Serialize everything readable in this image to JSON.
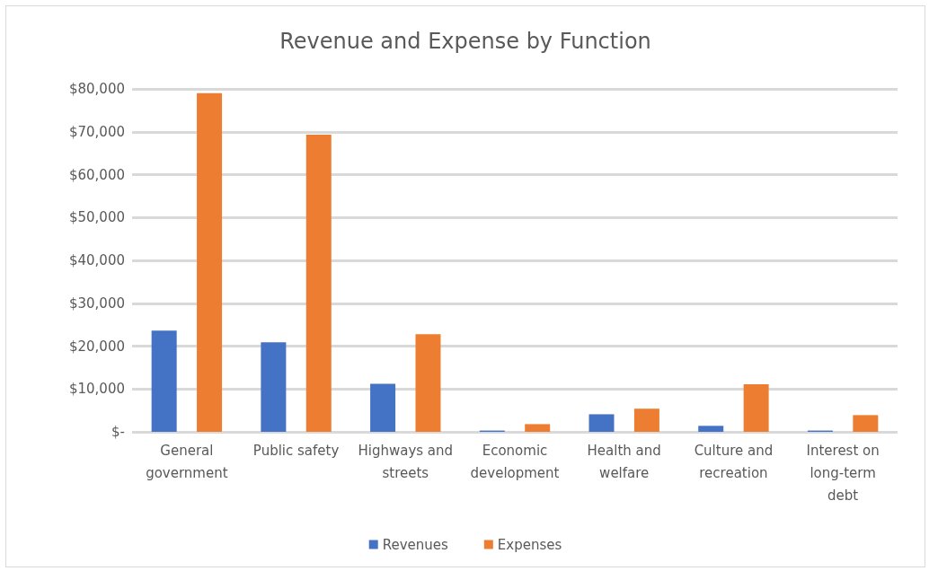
{
  "chart_data": {
    "type": "bar",
    "title": "Revenue and Expense by Function",
    "categories": [
      "General government",
      "Public safety",
      "Highways and streets",
      "Economic development",
      "Health and welfare",
      "Culture and recreation",
      "Interest on long-term debt"
    ],
    "series": [
      {
        "name": "Revenues",
        "color": "#4472c4",
        "values": [
          23600,
          20900,
          11200,
          300,
          4100,
          1400,
          300
        ]
      },
      {
        "name": "Expenses",
        "color": "#ed7d31",
        "values": [
          79000,
          69300,
          22800,
          1800,
          5400,
          11100,
          3900
        ]
      }
    ],
    "ylim": [
      0,
      80000
    ],
    "yticks": [
      {
        "value": 0,
        "label": "$-"
      },
      {
        "value": 10000,
        "label": "$10,000"
      },
      {
        "value": 20000,
        "label": "$20,000"
      },
      {
        "value": 30000,
        "label": "$30,000"
      },
      {
        "value": 40000,
        "label": "$40,000"
      },
      {
        "value": 50000,
        "label": "$50,000"
      },
      {
        "value": 60000,
        "label": "$60,000"
      },
      {
        "value": 70000,
        "label": "$70,000"
      },
      {
        "value": 80000,
        "label": "$80,000"
      }
    ],
    "grid": "y",
    "legend": "bottom"
  }
}
